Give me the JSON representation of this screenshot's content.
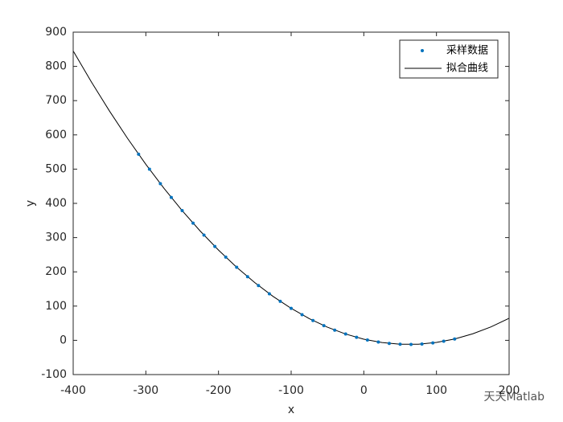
{
  "chart_data": {
    "type": "scatter-fit",
    "xlabel": "x",
    "ylabel": "y",
    "xlim": [
      -400,
      200
    ],
    "xticks": [
      -400,
      -300,
      -200,
      -100,
      0,
      100,
      200
    ],
    "ylim": [
      -100,
      900
    ],
    "yticks": [
      -100,
      0,
      100,
      200,
      300,
      400,
      500,
      600,
      700,
      800,
      900
    ],
    "legend": "upper right",
    "watermark": "天天Matlab",
    "series": [
      {
        "name": "采样数据",
        "kind": "scatter",
        "color": "#0072bd",
        "x": [
          -310,
          -295,
          -280,
          -265,
          -250,
          -235,
          -220,
          -205,
          -190,
          -175,
          -160,
          -145,
          -130,
          -115,
          -100,
          -85,
          -70,
          -55,
          -40,
          -25,
          -10,
          5,
          20,
          35,
          50,
          65,
          80,
          95,
          110,
          125
        ],
        "values": [
          543.6,
          499.7,
          457.6,
          417.3,
          378.8,
          342.2,
          307.3,
          274.2,
          243.0,
          213.5,
          185.9,
          160.0,
          136.0,
          113.8,
          93.4,
          74.8,
          58.0,
          43.0,
          29.8,
          18.4,
          8.8,
          1.0,
          -4.9,
          -9.1,
          -11.4,
          -12.0,
          -10.7,
          -7.6,
          -2.7,
          3.9
        ]
      },
      {
        "name": "拟合曲线",
        "kind": "line",
        "color": "#000000",
        "x": [
          -400,
          -375,
          -350,
          -325,
          -300,
          -275,
          -250,
          -225,
          -200,
          -175,
          -150,
          -125,
          -100,
          -75,
          -50,
          -25,
          0,
          25,
          50,
          75,
          100,
          125,
          150,
          175,
          200
        ],
        "values": [
          845.0,
          754.7,
          669.5,
          589.3,
          514.1,
          444.0,
          378.8,
          318.7,
          263.6,
          213.5,
          168.5,
          128.4,
          93.4,
          63.4,
          38.4,
          18.4,
          3.4,
          -6.5,
          -11.4,
          -11.3,
          -6.2,
          3.9,
          19.1,
          39.3,
          64.5
        ]
      }
    ]
  }
}
